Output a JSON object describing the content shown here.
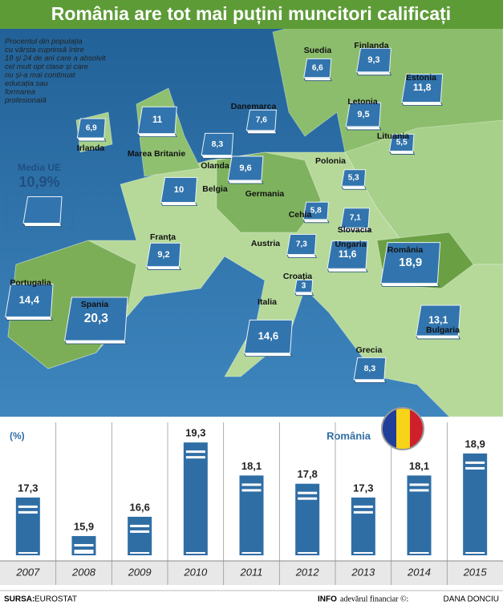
{
  "header": {
    "title": "România are tot mai puțini muncitori calificați"
  },
  "map": {
    "description": [
      "Procentul din populația",
      "cu vârsta cuprinsă între",
      "18 și 24 de ani care a absolvit",
      "cel mult opt clase și care",
      "nu și-a mai continuat",
      "educația sau",
      "formarea",
      "profesională"
    ],
    "eu_average": {
      "label": "Media UE",
      "value": 10.9,
      "value_label": "10,9%"
    },
    "countries": [
      "Irlanda",
      "Marea Britanie",
      "Olanda",
      "Belgia",
      "Franța",
      "Portugalia",
      "Spania",
      "Danemarca",
      "Germania",
      "Suedia",
      "Finlanda",
      "Estonia",
      "Letonia",
      "Lituania",
      "Polonia",
      "Cehia",
      "Slovacia",
      "Austria",
      "Ungaria",
      "Croația",
      "România",
      "Italia",
      "Bulgaria",
      "Grecia"
    ],
    "values": [
      6.9,
      11,
      8.3,
      10,
      9.2,
      14.4,
      20.3,
      7.6,
      9.6,
      6.6,
      9.3,
      11.8,
      9.5,
      5.5,
      5.3,
      5.8,
      7.1,
      7.3,
      11.6,
      3,
      18.9,
      14.6,
      13.1,
      8.3
    ],
    "value_labels": [
      "6,9",
      "11",
      "8,3",
      "10",
      "9,2",
      "14,4",
      "20,3",
      "7,6",
      "9,6",
      "6,6",
      "9,3",
      "11,8",
      "9,5",
      "5,5",
      "5,3",
      "5,8",
      "7,1",
      "7,3",
      "11,6",
      "3",
      "18,9",
      "14,6",
      "13,1",
      "8,3"
    ]
  },
  "chart_data": {
    "type": "bar",
    "y_label": "(%)",
    "series_name": "România",
    "categories": [
      "2007",
      "2008",
      "2009",
      "2010",
      "2011",
      "2012",
      "2013",
      "2014",
      "2015"
    ],
    "values": [
      17.3,
      15.9,
      16.6,
      19.3,
      18.1,
      17.8,
      17.3,
      18.1,
      18.9
    ],
    "value_labels": [
      "17,3",
      "15,9",
      "16,6",
      "19,3",
      "18,1",
      "17,8",
      "17,3",
      "18,1",
      "18,9"
    ],
    "color": "#2f6ea5",
    "ylim": [
      15.2,
      19.8
    ]
  },
  "footer": {
    "source_label": "SURSA:",
    "source": "EUROSTAT",
    "info_label": "INFO",
    "publisher": "adevărul financiar ©:",
    "author": "DANA DONCIU"
  }
}
